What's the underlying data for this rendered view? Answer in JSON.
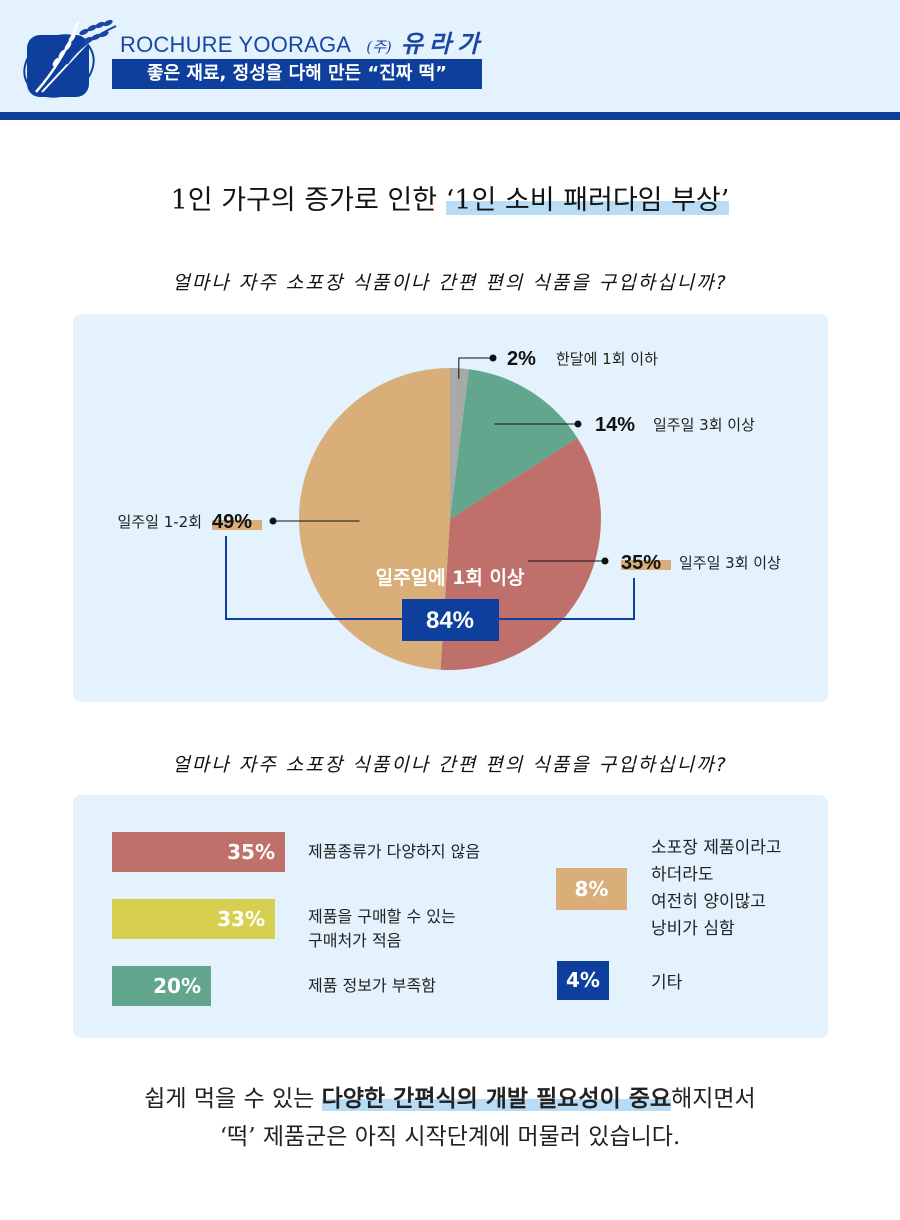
{
  "header": {
    "brand_en": "ROCHURE YOORAGA",
    "brand_paren": "(주)",
    "brand_kr": "유라가",
    "slogan": "좋은 재료, 정성을 다해 만든 “진짜 떡”"
  },
  "main_title": {
    "plain": "1인 가구의 증가로 인한 ",
    "highlight": "‘1인 소비 패러다임 부상’"
  },
  "question1": "얼마나 자주 소포장 식품이나 간편 편의 식품을 구입하십니까?",
  "question2": "얼마나 자주 소포장 식품이나 간편 편의 식품을 구입하십니까?",
  "colors": {
    "navy": "#0f3f9c",
    "light_bg": "#e3f2fc",
    "gray": "#a9a9a9",
    "green": "#62a68e",
    "red": "#c0706a",
    "tan": "#d9ae79",
    "yellow": "#d6cf50"
  },
  "chart_data": [
    {
      "type": "pie",
      "title": "",
      "slices": [
        {
          "label": "한달에 1회 이하",
          "value": 2,
          "value_label": "2%",
          "color": "#a9a9a9"
        },
        {
          "label": "일주일 3회 이상",
          "value": 14,
          "value_label": "14%",
          "color": "#62a68e"
        },
        {
          "label": "일주일 3회 이상",
          "value": 35,
          "value_label": "35%",
          "color": "#c0706a"
        },
        {
          "label": "일주일 1-2회",
          "value": 49,
          "value_label": "49%",
          "color": "#d9ae79"
        }
      ],
      "group_label": "일주일에 1회 이상",
      "group_value": "84%"
    },
    {
      "type": "bar",
      "title": "",
      "categories": [
        "제품종류가 다양하지 않음",
        "제품을 구매할 수 있는 구매처가 적음",
        "제품 정보가 부족함",
        "소포장 제품이라고 하더라도 여전히 양이많고 낭비가 심함",
        "기타"
      ],
      "values": [
        35,
        33,
        20,
        8,
        4
      ],
      "value_labels": [
        "35%",
        "33%",
        "20%",
        "8%",
        "4%"
      ],
      "label_lines": [
        [
          "제품종류가 다양하지 않음"
        ],
        [
          "제품을 구매할 수 있는",
          "구매처가 적음"
        ],
        [
          "제품 정보가 부족함"
        ],
        [
          "소포장 제품이라고",
          "하더라도",
          "여전히 양이많고",
          "낭비가 심함"
        ],
        [
          "기타"
        ]
      ],
      "colors": [
        "#c0706a",
        "#d6cf50",
        "#62a68e",
        "#d9ae79",
        "#0f3f9c"
      ]
    }
  ],
  "footer": {
    "line1_plain_a": "쉽게 먹을 수 있는 ",
    "line1_highlight": "다양한 간편식의 개발 필요성이 중요",
    "line1_plain_b": "해지면서",
    "line2": "‘떡’ 제품군은 아직 시작단계에 머물러 있습니다."
  }
}
